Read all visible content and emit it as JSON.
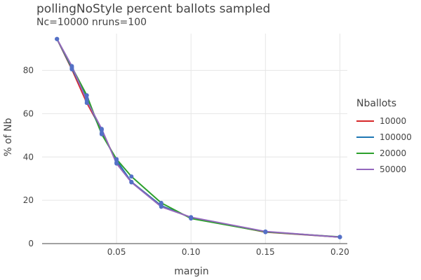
{
  "chart_data": {
    "type": "line",
    "title": "pollingNoStyle percent ballots sampled",
    "subtitle": "Nc=10000 nruns=100",
    "xlabel": "margin",
    "ylabel": "% of Nb",
    "xlim": [
      0.0,
      0.205
    ],
    "ylim": [
      0,
      97
    ],
    "x_ticks": [
      0.05,
      0.1,
      0.15,
      0.2
    ],
    "x_tick_labels": [
      "0.05",
      "0.10",
      "0.15",
      "0.20"
    ],
    "y_ticks": [
      0,
      20,
      40,
      60,
      80
    ],
    "y_tick_labels": [
      "0",
      "20",
      "40",
      "60",
      "80"
    ],
    "grid": true,
    "legend_title": "Nballots",
    "legend_position": "right",
    "x": [
      0.01,
      0.02,
      0.03,
      0.04,
      0.05,
      0.06,
      0.08,
      0.1,
      0.15,
      0.2
    ],
    "series": [
      {
        "name": "10000",
        "color": "#d62728",
        "values": [
          94.5,
          80.5,
          65.0,
          52.5,
          37.5,
          28.5,
          17.5,
          12.0,
          5.3,
          3.0
        ]
      },
      {
        "name": "100000",
        "color": "#1f77b4",
        "values": [
          94.5,
          81.0,
          67.0,
          51.0,
          38.5,
          28.5,
          17.5,
          12.0,
          5.5,
          3.0
        ]
      },
      {
        "name": "20000",
        "color": "#2ca02c",
        "values": [
          94.5,
          81.5,
          68.5,
          50.5,
          39.0,
          31.0,
          18.8,
          11.6,
          5.4,
          3.1
        ]
      },
      {
        "name": "50000",
        "color": "#9467bd",
        "values": [
          94.5,
          82.0,
          66.0,
          53.0,
          37.0,
          28.3,
          17.0,
          12.2,
          5.6,
          3.0
        ]
      }
    ],
    "marker_color": "#5470c6"
  }
}
